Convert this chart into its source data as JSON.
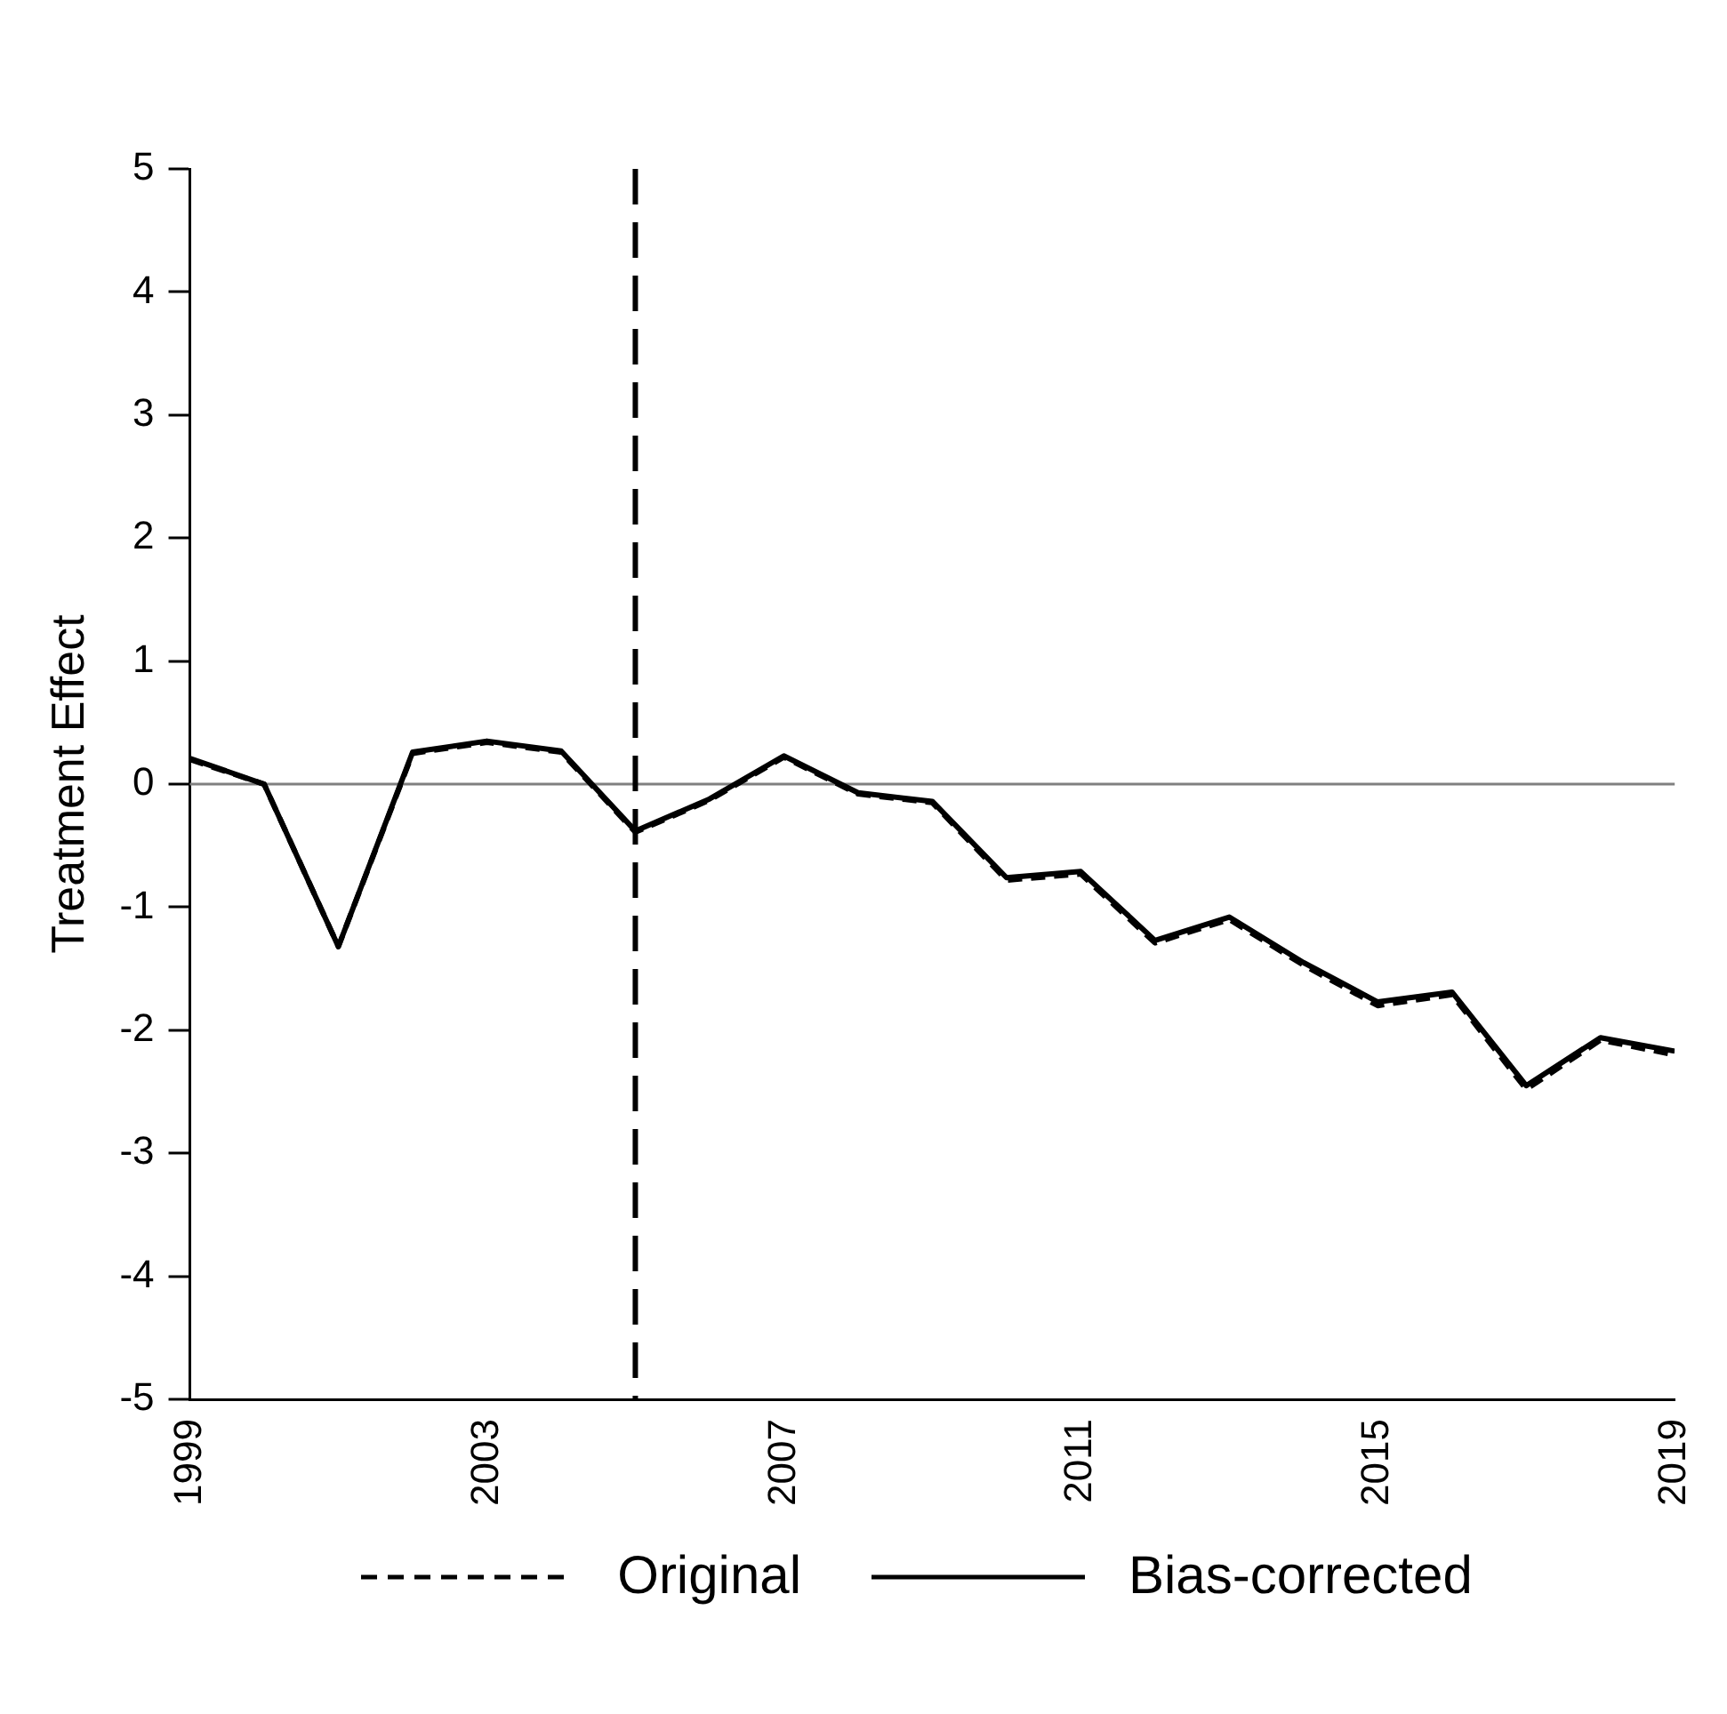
{
  "chart_data": {
    "type": "line",
    "ylabel": "Treatment Effect",
    "x": [
      1999,
      2000,
      2001,
      2002,
      2003,
      2004,
      2005,
      2006,
      2007,
      2008,
      2009,
      2010,
      2011,
      2012,
      2013,
      2014,
      2015,
      2016,
      2017,
      2018,
      2019
    ],
    "series": [
      {
        "name": "Original",
        "color": "#000000",
        "line_style": "dashed",
        "values": [
          0.2,
          0,
          -1.32,
          0.25,
          0.34,
          0.26,
          -0.39,
          -0.13,
          0.22,
          -0.08,
          -0.15,
          -0.78,
          -0.73,
          -1.29,
          -1.1,
          -1.47,
          -1.8,
          -1.71,
          -2.48,
          -2.08,
          -2.2
        ]
      },
      {
        "name": "Bias-corrected",
        "color": "#000000",
        "line_style": "solid",
        "values": [
          0.21,
          0,
          -1.32,
          0.26,
          0.35,
          0.27,
          -0.38,
          -0.12,
          0.23,
          -0.07,
          -0.14,
          -0.76,
          -0.71,
          -1.27,
          -1.08,
          -1.45,
          -1.77,
          -1.69,
          -2.45,
          -2.06,
          -2.17
        ]
      }
    ],
    "xlim": [
      1999,
      2019
    ],
    "xticks": [
      1999,
      2003,
      2007,
      2011,
      2015,
      2019
    ],
    "ylim": [
      -5,
      5
    ],
    "yticks": [
      -5,
      -4,
      -3,
      -2,
      -1,
      0,
      1,
      2,
      3,
      4,
      5
    ],
    "ref_lines": [
      {
        "axis": "y",
        "value": 0,
        "color": "#808080",
        "line_style": "solid"
      },
      {
        "axis": "x",
        "value": 2005,
        "color": "#000000",
        "line_style": "dashed"
      }
    ],
    "grid": false,
    "legend": "bottom",
    "marker": "none"
  }
}
